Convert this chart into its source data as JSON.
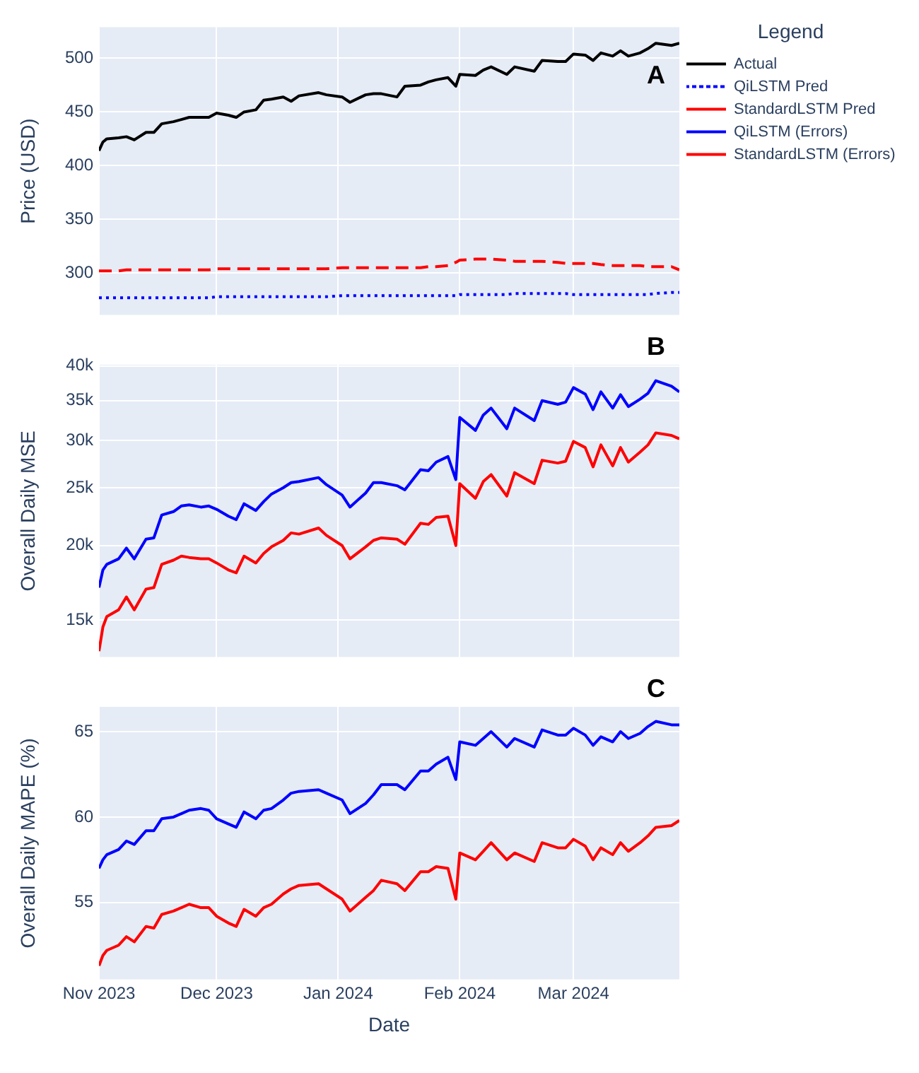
{
  "chart_data": [
    {
      "type": "line",
      "ylabel": "Price (USD)",
      "annotations": [
        "A"
      ],
      "legend": "top right",
      "legend_title": "Legend",
      "grid": true,
      "marker": "none",
      "tick_labels": "y",
      "x": [
        "2023-11-01",
        "2023-11-02",
        "2023-11-03",
        "2023-11-06",
        "2023-11-08",
        "2023-11-10",
        "2023-11-13",
        "2023-11-15",
        "2023-11-17",
        "2023-11-20",
        "2023-11-22",
        "2023-11-24",
        "2023-11-27",
        "2023-11-29",
        "2023-12-01",
        "2023-12-04",
        "2023-12-06",
        "2023-12-08",
        "2023-12-11",
        "2023-12-13",
        "2023-12-15",
        "2023-12-18",
        "2023-12-20",
        "2023-12-22",
        "2023-12-27",
        "2023-12-29",
        "2024-01-02",
        "2024-01-04",
        "2024-01-08",
        "2024-01-10",
        "2024-01-12",
        "2024-01-16",
        "2024-01-18",
        "2024-01-22",
        "2024-01-24",
        "2024-01-26",
        "2024-01-29",
        "2024-01-31",
        "2024-02-01",
        "2024-02-05",
        "2024-02-07",
        "2024-02-09",
        "2024-02-13",
        "2024-02-15",
        "2024-02-20",
        "2024-02-22",
        "2024-02-26",
        "2024-02-28",
        "2024-03-01",
        "2024-03-04",
        "2024-03-06",
        "2024-03-08",
        "2024-03-11",
        "2024-03-13",
        "2024-03-15",
        "2024-03-18",
        "2024-03-20",
        "2024-03-22",
        "2024-03-26",
        "2024-03-28"
      ],
      "xlim": [
        "2023-11-01",
        "2024-03-28"
      ],
      "xticks": [
        {
          "value": "2023-11-01",
          "label": null
        },
        {
          "value": "2023-12-01",
          "label": null
        },
        {
          "value": "2024-01-01",
          "label": null
        },
        {
          "value": "2024-02-01",
          "label": null
        },
        {
          "value": "2024-03-01",
          "label": null
        }
      ],
      "ylim": [
        261,
        529
      ],
      "yticks": [
        300,
        350,
        400,
        450,
        500
      ],
      "series": [
        {
          "name": "Actual",
          "color": "#000000",
          "line_style": "solid",
          "values": [
            414,
            422,
            425,
            426,
            427,
            424,
            431,
            431,
            439,
            441,
            443,
            445,
            445,
            445,
            449,
            447,
            445,
            450,
            452,
            461,
            462,
            464,
            460,
            465,
            468,
            466,
            464,
            459,
            466,
            467,
            467,
            464,
            474,
            475,
            478,
            480,
            482,
            474,
            485,
            484,
            489,
            492,
            485,
            492,
            488,
            498,
            497,
            497,
            504,
            503,
            498,
            505,
            502,
            507,
            502,
            505,
            509,
            514,
            512,
            514
          ]
        },
        {
          "name": "QiLSTM Pred",
          "color": "#0000ff",
          "line_style": "dotted",
          "values": [
            277,
            277,
            277,
            277,
            277,
            277,
            277,
            277,
            277,
            277,
            277,
            277,
            277,
            277,
            278,
            278,
            278,
            278,
            278,
            278,
            278,
            278,
            278,
            278,
            278,
            278,
            279,
            279,
            279,
            279,
            279,
            279,
            279,
            279,
            279,
            279,
            279,
            279,
            280,
            280,
            280,
            280,
            280,
            281,
            281,
            281,
            281,
            281,
            280,
            280,
            280,
            280,
            280,
            280,
            280,
            280,
            280,
            281,
            282,
            282
          ]
        },
        {
          "name": "StandardLSTM Pred",
          "color": "#ff0000",
          "line_style": "dashed",
          "values": [
            302,
            302,
            302,
            302,
            303,
            303,
            303,
            303,
            303,
            303,
            303,
            303,
            303,
            303,
            304,
            304,
            304,
            304,
            304,
            304,
            304,
            304,
            304,
            304,
            304,
            304,
            305,
            305,
            305,
            305,
            305,
            305,
            305,
            305,
            306,
            306,
            307,
            310,
            312,
            313,
            313,
            313,
            312,
            311,
            311,
            311,
            310,
            309,
            309,
            309,
            309,
            308,
            307,
            307,
            307,
            307,
            306,
            306,
            306,
            303
          ]
        }
      ]
    },
    {
      "type": "line",
      "ylabel": "Overall Daily MSE",
      "annotations": [
        "B"
      ],
      "legend": false,
      "grid": true,
      "marker": "none",
      "tick_labels": "y",
      "log": "y",
      "x": [
        "2023-11-01",
        "2023-11-02",
        "2023-11-03",
        "2023-11-06",
        "2023-11-08",
        "2023-11-10",
        "2023-11-13",
        "2023-11-15",
        "2023-11-17",
        "2023-11-20",
        "2023-11-22",
        "2023-11-24",
        "2023-11-27",
        "2023-11-29",
        "2023-12-01",
        "2023-12-04",
        "2023-12-06",
        "2023-12-08",
        "2023-12-11",
        "2023-12-13",
        "2023-12-15",
        "2023-12-18",
        "2023-12-20",
        "2023-12-22",
        "2023-12-27",
        "2023-12-29",
        "2024-01-02",
        "2024-01-04",
        "2024-01-08",
        "2024-01-10",
        "2024-01-12",
        "2024-01-16",
        "2024-01-18",
        "2024-01-22",
        "2024-01-24",
        "2024-01-26",
        "2024-01-29",
        "2024-01-31",
        "2024-02-01",
        "2024-02-05",
        "2024-02-07",
        "2024-02-09",
        "2024-02-13",
        "2024-02-15",
        "2024-02-20",
        "2024-02-22",
        "2024-02-26",
        "2024-02-28",
        "2024-03-01",
        "2024-03-04",
        "2024-03-06",
        "2024-03-08",
        "2024-03-11",
        "2024-03-13",
        "2024-03-15",
        "2024-03-18",
        "2024-03-20",
        "2024-03-22",
        "2024-03-26",
        "2024-03-28"
      ],
      "xlim": [
        "2023-11-01",
        "2024-03-28"
      ],
      "xticks": [
        {
          "value": "2023-11-01",
          "label": null
        },
        {
          "value": "2023-12-01",
          "label": null
        },
        {
          "value": "2024-01-01",
          "label": null
        },
        {
          "value": "2024-02-01",
          "label": null
        },
        {
          "value": "2024-03-01",
          "label": null
        }
      ],
      "ylim": [
        13000,
        40200
      ],
      "yticks": [
        {
          "value": 15000,
          "label": "15k"
        },
        {
          "value": 20000,
          "label": "20k"
        },
        {
          "value": 25000,
          "label": "25k"
        },
        {
          "value": 30000,
          "label": "30k"
        },
        {
          "value": 35000,
          "label": "35k"
        },
        {
          "value": 40000,
          "label": "40k"
        }
      ],
      "series": [
        {
          "name": "QiLSTM (Errors)",
          "color": "#0000ff",
          "line_style": "solid",
          "values": [
            17000,
            18200,
            18600,
            19000,
            19800,
            19000,
            20500,
            20600,
            22500,
            22800,
            23300,
            23400,
            23200,
            23300,
            23000,
            22400,
            22100,
            23500,
            22900,
            23700,
            24400,
            25000,
            25500,
            25600,
            26000,
            25300,
            24300,
            23200,
            24500,
            25500,
            25500,
            25200,
            24800,
            26800,
            26700,
            27600,
            28200,
            25800,
            32800,
            31200,
            33100,
            34000,
            31400,
            34000,
            32400,
            35000,
            34500,
            34800,
            36800,
            35900,
            33800,
            36200,
            34000,
            35800,
            34200,
            35200,
            36000,
            37800,
            37000,
            36200
          ]
        },
        {
          "name": "StandardLSTM (Errors)",
          "color": "#ff0000",
          "line_style": "solid",
          "values": [
            13300,
            14600,
            15200,
            15600,
            16400,
            15600,
            16900,
            17000,
            18600,
            18900,
            19200,
            19100,
            19000,
            19000,
            18700,
            18200,
            18000,
            19200,
            18700,
            19400,
            19900,
            20400,
            21000,
            20900,
            21400,
            20800,
            20000,
            19000,
            19900,
            20400,
            20600,
            20500,
            20100,
            21800,
            21700,
            22300,
            22400,
            20000,
            25400,
            24000,
            25600,
            26300,
            24200,
            26500,
            25400,
            27800,
            27500,
            27700,
            29900,
            29200,
            27100,
            29500,
            27200,
            29200,
            27600,
            28700,
            29500,
            30900,
            30600,
            30200
          ]
        }
      ]
    },
    {
      "type": "line",
      "ylabel": "Overall Daily MAPE (%)",
      "xlabel": "Date",
      "annotations": [
        "C"
      ],
      "legend": false,
      "grid": true,
      "marker": "none",
      "x": [
        "2023-11-01",
        "2023-11-02",
        "2023-11-03",
        "2023-11-06",
        "2023-11-08",
        "2023-11-10",
        "2023-11-13",
        "2023-11-15",
        "2023-11-17",
        "2023-11-20",
        "2023-11-22",
        "2023-11-24",
        "2023-11-27",
        "2023-11-29",
        "2023-12-01",
        "2023-12-04",
        "2023-12-06",
        "2023-12-08",
        "2023-12-11",
        "2023-12-13",
        "2023-12-15",
        "2023-12-18",
        "2023-12-20",
        "2023-12-22",
        "2023-12-27",
        "2023-12-29",
        "2024-01-02",
        "2024-01-04",
        "2024-01-08",
        "2024-01-10",
        "2024-01-12",
        "2024-01-16",
        "2024-01-18",
        "2024-01-22",
        "2024-01-24",
        "2024-01-26",
        "2024-01-29",
        "2024-01-31",
        "2024-02-01",
        "2024-02-05",
        "2024-02-07",
        "2024-02-09",
        "2024-02-13",
        "2024-02-15",
        "2024-02-20",
        "2024-02-22",
        "2024-02-26",
        "2024-02-28",
        "2024-03-01",
        "2024-03-04",
        "2024-03-06",
        "2024-03-08",
        "2024-03-11",
        "2024-03-13",
        "2024-03-15",
        "2024-03-18",
        "2024-03-20",
        "2024-03-22",
        "2024-03-26",
        "2024-03-28"
      ],
      "xlim": [
        "2023-11-01",
        "2024-03-28"
      ],
      "xticks": [
        {
          "value": "2023-11-01",
          "label": "Nov 2023"
        },
        {
          "value": "2023-12-01",
          "label": "Dec 2023"
        },
        {
          "value": "2024-01-01",
          "label": "Jan 2024"
        },
        {
          "value": "2024-02-01",
          "label": "Feb 2024"
        },
        {
          "value": "2024-03-01",
          "label": "Mar 2024"
        }
      ],
      "ylim": [
        50.5,
        66.45
      ],
      "yticks": [
        55,
        60,
        65
      ],
      "series": [
        {
          "color": "#0000ff",
          "line_style": "solid",
          "values": [
            57.0,
            57.5,
            57.8,
            58.1,
            58.6,
            58.4,
            59.2,
            59.2,
            59.9,
            60.0,
            60.2,
            60.4,
            60.5,
            60.4,
            59.9,
            59.6,
            59.4,
            60.3,
            59.9,
            60.4,
            60.5,
            61.0,
            61.4,
            61.5,
            61.6,
            61.4,
            61.0,
            60.2,
            60.8,
            61.3,
            61.9,
            61.9,
            61.6,
            62.7,
            62.7,
            63.1,
            63.5,
            62.2,
            64.4,
            64.2,
            64.6,
            65.0,
            64.1,
            64.6,
            64.1,
            65.1,
            64.8,
            64.8,
            65.2,
            64.8,
            64.2,
            64.7,
            64.4,
            65.0,
            64.6,
            64.9,
            65.3,
            65.6,
            65.4,
            65.4
          ]
        },
        {
          "color": "#ff0000",
          "line_style": "solid",
          "values": [
            51.3,
            51.9,
            52.2,
            52.5,
            53.0,
            52.7,
            53.6,
            53.5,
            54.3,
            54.5,
            54.7,
            54.9,
            54.7,
            54.7,
            54.2,
            53.8,
            53.6,
            54.6,
            54.2,
            54.7,
            54.9,
            55.5,
            55.8,
            56.0,
            56.1,
            55.8,
            55.2,
            54.5,
            55.3,
            55.7,
            56.3,
            56.1,
            55.7,
            56.8,
            56.8,
            57.1,
            57.0,
            55.2,
            57.9,
            57.5,
            58.0,
            58.5,
            57.5,
            57.9,
            57.4,
            58.5,
            58.2,
            58.2,
            58.7,
            58.3,
            57.5,
            58.2,
            57.8,
            58.5,
            58.0,
            58.5,
            58.9,
            59.4,
            59.5,
            59.8
          ]
        }
      ]
    }
  ]
}
